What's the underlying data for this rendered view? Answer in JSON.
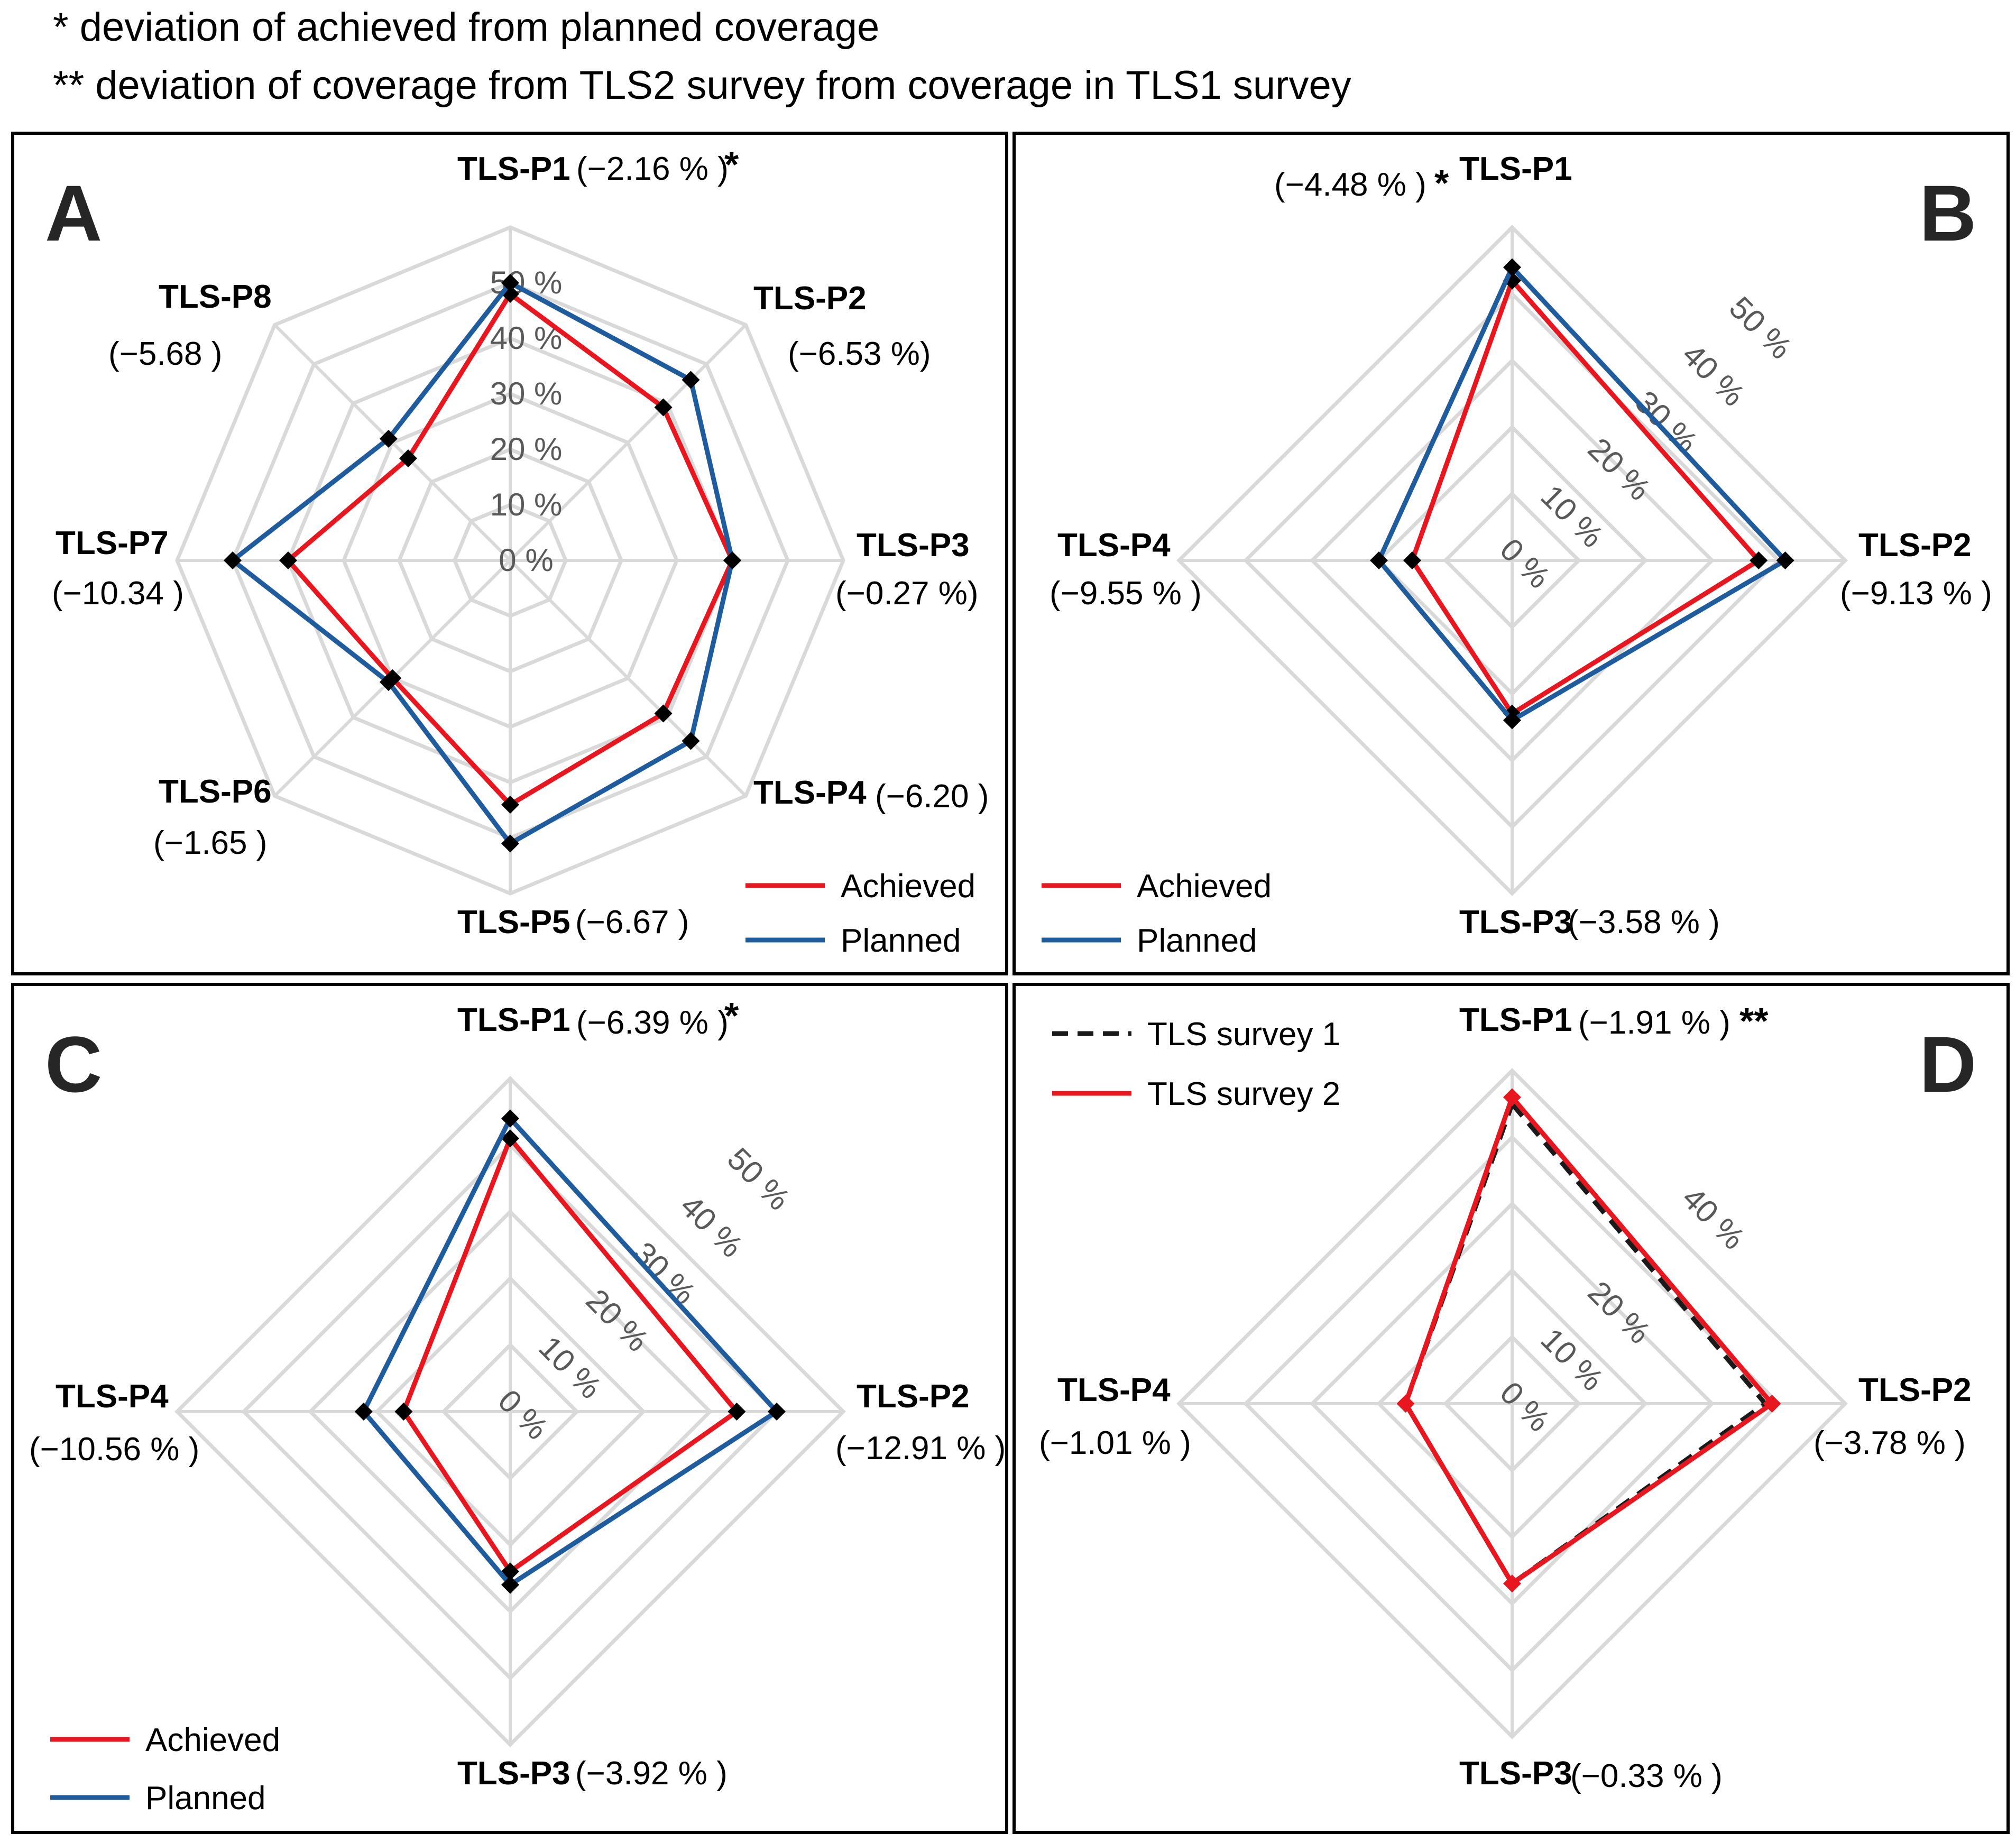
{
  "notes": {
    "line1": "* deviation of achieved from planned coverage",
    "line2": "** deviation of coverage from TLS2 survey from coverage in TLS1 survey"
  },
  "colors": {
    "achieved": "#e8171f",
    "planned": "#1f5c9e",
    "survey1": "#1a1a1a",
    "survey2": "#e8171f",
    "grid": "#d9d9d9",
    "marker": "#000000"
  },
  "chart_data": [
    {
      "type": "radar",
      "panel": "A",
      "categories": [
        "TLS-P1",
        "TLS-P2",
        "TLS-P3",
        "TLS-P4",
        "TLS-P5",
        "TLS-P6",
        "TLS-P7",
        "TLS-P8"
      ],
      "deviations": [
        "(−2.16 % )",
        "(−6.53 %)",
        "(−0.27 %)",
        "(−6.20 )",
        "(−6.67 )",
        "(−1.65 )",
        "(−10.34 )",
        "(−5.68 )"
      ],
      "star_on": 0,
      "star": "*",
      "rmax": 60,
      "ring_values": [
        10,
        20,
        30,
        40,
        50
      ],
      "ring_labels": [
        "0 %",
        "10 %",
        "20 %",
        "30 %",
        "40 %",
        "50 %"
      ],
      "series": [
        {
          "name": "Achieved",
          "color_key": "achieved",
          "dashed": false,
          "marker": "diamond",
          "marker_color_key": "marker",
          "values": [
            48,
            39,
            40,
            39,
            44,
            30,
            40,
            26
          ]
        },
        {
          "name": "Planned",
          "color_key": "planned",
          "dashed": false,
          "marker": "diamond",
          "marker_color_key": "marker",
          "values": [
            50,
            46,
            40,
            46,
            51,
            31,
            50,
            31
          ]
        }
      ],
      "legend": [
        "Achieved",
        "Planned"
      ]
    },
    {
      "type": "radar",
      "panel": "B",
      "categories": [
        "TLS-P1",
        "TLS-P2",
        "TLS-P3",
        "TLS-P4"
      ],
      "deviations": [
        "(−4.48 % )",
        "(−9.13 % )",
        "(−3.58 % )",
        "(−9.55 % )"
      ],
      "star_on": 0,
      "star": "*",
      "rmax": 50,
      "ring_values": [
        10,
        20,
        30,
        40,
        50
      ],
      "ring_labels": [
        "0 %",
        "10 %",
        "20 %",
        "30 %",
        "40 %",
        "50 %"
      ],
      "series": [
        {
          "name": "Achieved",
          "color_key": "achieved",
          "dashed": false,
          "marker": "diamond",
          "marker_color_key": "marker",
          "values": [
            42,
            37,
            23,
            15
          ]
        },
        {
          "name": "Planned",
          "color_key": "planned",
          "dashed": false,
          "marker": "diamond",
          "marker_color_key": "marker",
          "values": [
            44,
            41,
            24,
            20
          ]
        }
      ],
      "legend": [
        "Achieved",
        "Planned"
      ]
    },
    {
      "type": "radar",
      "panel": "C",
      "categories": [
        "TLS-P1",
        "TLS-P2",
        "TLS-P3",
        "TLS-P4"
      ],
      "deviations": [
        "(−6.39 % )",
        "(−12.91 % )",
        "(−3.92 % )",
        "(−10.56 % )"
      ],
      "star_on": 0,
      "star": "*",
      "rmax": 50,
      "ring_values": [
        10,
        20,
        30,
        40,
        50
      ],
      "ring_labels": [
        "0 %",
        "10 %",
        "20 %",
        "30 %",
        "40 %",
        "50 %"
      ],
      "series": [
        {
          "name": "Achieved",
          "color_key": "achieved",
          "dashed": false,
          "marker": "diamond",
          "marker_color_key": "marker",
          "values": [
            41,
            34,
            24,
            16
          ]
        },
        {
          "name": "Planned",
          "color_key": "planned",
          "dashed": false,
          "marker": "diamond",
          "marker_color_key": "marker",
          "values": [
            44,
            40,
            26,
            22
          ]
        }
      ],
      "legend": [
        "Achieved",
        "Planned"
      ]
    },
    {
      "type": "radar",
      "panel": "D",
      "categories": [
        "TLS-P1",
        "TLS-P2",
        "TLS-P3",
        "TLS-P4"
      ],
      "deviations": [
        "(−1.91 % )",
        "(−3.78 % )",
        "(−0.33 % )",
        "(−1.01 % )"
      ],
      "star_on": 0,
      "star": "**",
      "rmax": 50,
      "ring_values": [
        10,
        20,
        30,
        40,
        50
      ],
      "ring_labels": [
        "0 %",
        "10 %",
        "20 %",
        "40 %"
      ],
      "ring_label_at": [
        0,
        10,
        20,
        40
      ],
      "series": [
        {
          "name": "TLS survey 1",
          "color_key": "survey1",
          "dashed": true,
          "marker": "none",
          "values": [
            45,
            38,
            27,
            16
          ]
        },
        {
          "name": "TLS survey 2",
          "color_key": "survey2",
          "dashed": false,
          "marker": "diamond",
          "marker_color_key": "survey2",
          "values": [
            46,
            39,
            27,
            16
          ]
        }
      ],
      "legend": [
        "TLS survey 1",
        "TLS survey 2"
      ]
    }
  ]
}
